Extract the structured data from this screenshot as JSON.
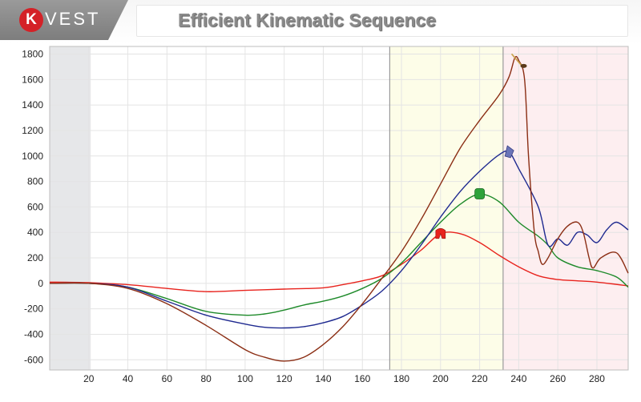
{
  "brand": {
    "logo_letter": "K",
    "logo_rest": "VEST",
    "accent": "#d42127"
  },
  "title": "Efficient Kinematic Sequence",
  "chart_data": {
    "type": "line",
    "title": "Efficient Kinematic Sequence",
    "xlabel": "",
    "ylabel": "",
    "xlim": [
      0,
      296
    ],
    "ylim": [
      -680,
      1860
    ],
    "x_ticks": [
      20,
      40,
      60,
      80,
      100,
      120,
      140,
      160,
      180,
      200,
      220,
      240,
      260,
      280
    ],
    "y_ticks": [
      -600,
      -400,
      -200,
      0,
      200,
      400,
      600,
      800,
      1000,
      1200,
      1400,
      1600,
      1800
    ],
    "grid": true,
    "regions": [
      {
        "x": [
          0,
          21
        ],
        "color": "#e6e7e9"
      },
      {
        "x": [
          174,
          232
        ],
        "color": "#fdfde8"
      },
      {
        "x": [
          232,
          296
        ],
        "color": "#fdeef0"
      }
    ],
    "markers_x": [
      174,
      232
    ],
    "series": [
      {
        "color": "#e8231d",
        "icon": "pelvis-icon",
        "points": [
          [
            0,
            10
          ],
          [
            20,
            5
          ],
          [
            40,
            -10
          ],
          [
            60,
            -40
          ],
          [
            80,
            -65
          ],
          [
            100,
            -55
          ],
          [
            120,
            -45
          ],
          [
            140,
            -35
          ],
          [
            150,
            -10
          ],
          [
            160,
            20
          ],
          [
            170,
            60
          ],
          [
            180,
            150
          ],
          [
            190,
            260
          ],
          [
            200,
            390
          ],
          [
            210,
            390
          ],
          [
            220,
            320
          ],
          [
            230,
            220
          ],
          [
            240,
            130
          ],
          [
            250,
            60
          ],
          [
            260,
            30
          ],
          [
            270,
            20
          ],
          [
            280,
            10
          ],
          [
            296,
            -20
          ]
        ]
      },
      {
        "color": "#1e8a2a",
        "icon": "torso-icon",
        "points": [
          [
            0,
            0
          ],
          [
            20,
            0
          ],
          [
            40,
            -30
          ],
          [
            60,
            -120
          ],
          [
            80,
            -220
          ],
          [
            100,
            -250
          ],
          [
            110,
            -240
          ],
          [
            120,
            -210
          ],
          [
            130,
            -170
          ],
          [
            140,
            -140
          ],
          [
            150,
            -100
          ],
          [
            160,
            -40
          ],
          [
            170,
            40
          ],
          [
            180,
            160
          ],
          [
            190,
            320
          ],
          [
            200,
            480
          ],
          [
            210,
            620
          ],
          [
            220,
            700
          ],
          [
            230,
            640
          ],
          [
            240,
            480
          ],
          [
            250,
            370
          ],
          [
            255,
            300
          ],
          [
            260,
            200
          ],
          [
            270,
            130
          ],
          [
            280,
            100
          ],
          [
            290,
            50
          ],
          [
            296,
            -30
          ]
        ]
      },
      {
        "color": "#1f2a90",
        "icon": "arm-icon",
        "points": [
          [
            0,
            0
          ],
          [
            20,
            0
          ],
          [
            40,
            -30
          ],
          [
            60,
            -140
          ],
          [
            80,
            -250
          ],
          [
            100,
            -320
          ],
          [
            110,
            -345
          ],
          [
            120,
            -350
          ],
          [
            130,
            -340
          ],
          [
            140,
            -310
          ],
          [
            150,
            -260
          ],
          [
            160,
            -170
          ],
          [
            170,
            -60
          ],
          [
            180,
            100
          ],
          [
            190,
            300
          ],
          [
            200,
            520
          ],
          [
            210,
            720
          ],
          [
            220,
            880
          ],
          [
            230,
            1010
          ],
          [
            235,
            1030
          ],
          [
            240,
            900
          ],
          [
            250,
            600
          ],
          [
            255,
            300
          ],
          [
            260,
            350
          ],
          [
            265,
            300
          ],
          [
            270,
            400
          ],
          [
            275,
            380
          ],
          [
            280,
            320
          ],
          [
            285,
            420
          ],
          [
            290,
            480
          ],
          [
            296,
            420
          ]
        ]
      },
      {
        "color": "#8b2e14",
        "icon": "club-icon",
        "points": [
          [
            0,
            0
          ],
          [
            20,
            0
          ],
          [
            40,
            -40
          ],
          [
            60,
            -160
          ],
          [
            80,
            -330
          ],
          [
            100,
            -520
          ],
          [
            110,
            -580
          ],
          [
            120,
            -610
          ],
          [
            130,
            -580
          ],
          [
            140,
            -480
          ],
          [
            150,
            -340
          ],
          [
            160,
            -160
          ],
          [
            170,
            40
          ],
          [
            180,
            250
          ],
          [
            190,
            500
          ],
          [
            200,
            780
          ],
          [
            210,
            1060
          ],
          [
            220,
            1280
          ],
          [
            230,
            1480
          ],
          [
            235,
            1620
          ],
          [
            238,
            1770
          ],
          [
            240,
            1750
          ],
          [
            243,
            1600
          ],
          [
            245,
            1000
          ],
          [
            248,
            400
          ],
          [
            250,
            250
          ],
          [
            252,
            150
          ],
          [
            255,
            200
          ],
          [
            260,
            350
          ],
          [
            265,
            450
          ],
          [
            270,
            480
          ],
          [
            273,
            400
          ],
          [
            276,
            200
          ],
          [
            278,
            120
          ],
          [
            282,
            200
          ],
          [
            290,
            240
          ],
          [
            296,
            80
          ]
        ]
      }
    ]
  }
}
